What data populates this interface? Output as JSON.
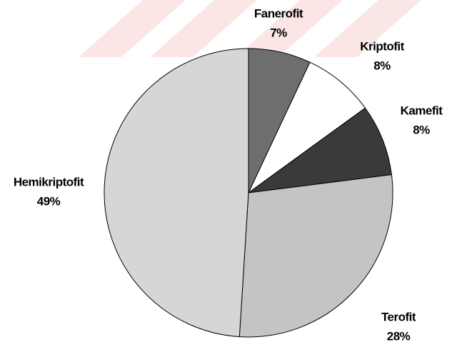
{
  "chart_data": {
    "type": "pie",
    "categories": [
      "Fanerofit",
      "Kriptofit",
      "Kamefit",
      "Terofit",
      "Hemikriptofit"
    ],
    "values": [
      7,
      8,
      8,
      28,
      49
    ],
    "value_labels": [
      "7%",
      "8%",
      "8%",
      "28%",
      "49%"
    ],
    "colors": [
      "#6e6e6e",
      "#ffffff",
      "#3a3a3a",
      "#c4c4c4",
      "#d6d6d6"
    ]
  }
}
